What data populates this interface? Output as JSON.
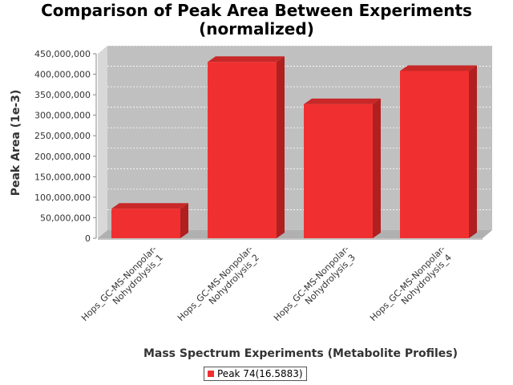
{
  "title_line1": "Comparison of Peak Area Between Experiments",
  "title_line2": "(normalized)",
  "colors": {
    "bar_front": "#f03030",
    "bar_top": "#c82828",
    "bar_side": "#b02020",
    "plot_back": "#c0c0c0",
    "plot_wall": "#d8d8d8",
    "plot_floor": "#b0b0b0"
  },
  "legend": {
    "label": "Peak 74(16.5883)"
  },
  "chart_data": {
    "type": "bar",
    "title": "Comparison of Peak Area Between Experiments (normalized)",
    "xlabel": "Mass Spectrum Experiments (Metabolite Profiles)",
    "ylabel": "Peak Area (1e-3)",
    "categories": [
      [
        "Hops_GC-MS-Nonpolar-",
        "Nohydrolysis_1"
      ],
      [
        "Hops_GC-MS-Nonpolar-",
        "Nohydrolysis_2"
      ],
      [
        "Hops_GC-MS-Nonpolar-",
        "Nohydrolysis_3"
      ],
      [
        "Hops_GC-MS-Nonpolar-",
        "Nohydrolysis_4"
      ]
    ],
    "series": [
      {
        "name": "Peak 74(16.5883)",
        "values": [
          72000000,
          430000000,
          327000000,
          408000000
        ]
      }
    ],
    "ylim": [
      0,
      450000000
    ],
    "yticks": [
      0,
      50000000,
      100000000,
      150000000,
      200000000,
      250000000,
      300000000,
      350000000,
      400000000,
      450000000
    ],
    "ytick_labels": [
      "0",
      "50,000,000",
      "100,000,000",
      "150,000,000",
      "200,000,000",
      "250,000,000",
      "300,000,000",
      "350,000,000",
      "400,000,000",
      "450,000,000"
    ],
    "grid": true,
    "legend_position": "bottom"
  }
}
